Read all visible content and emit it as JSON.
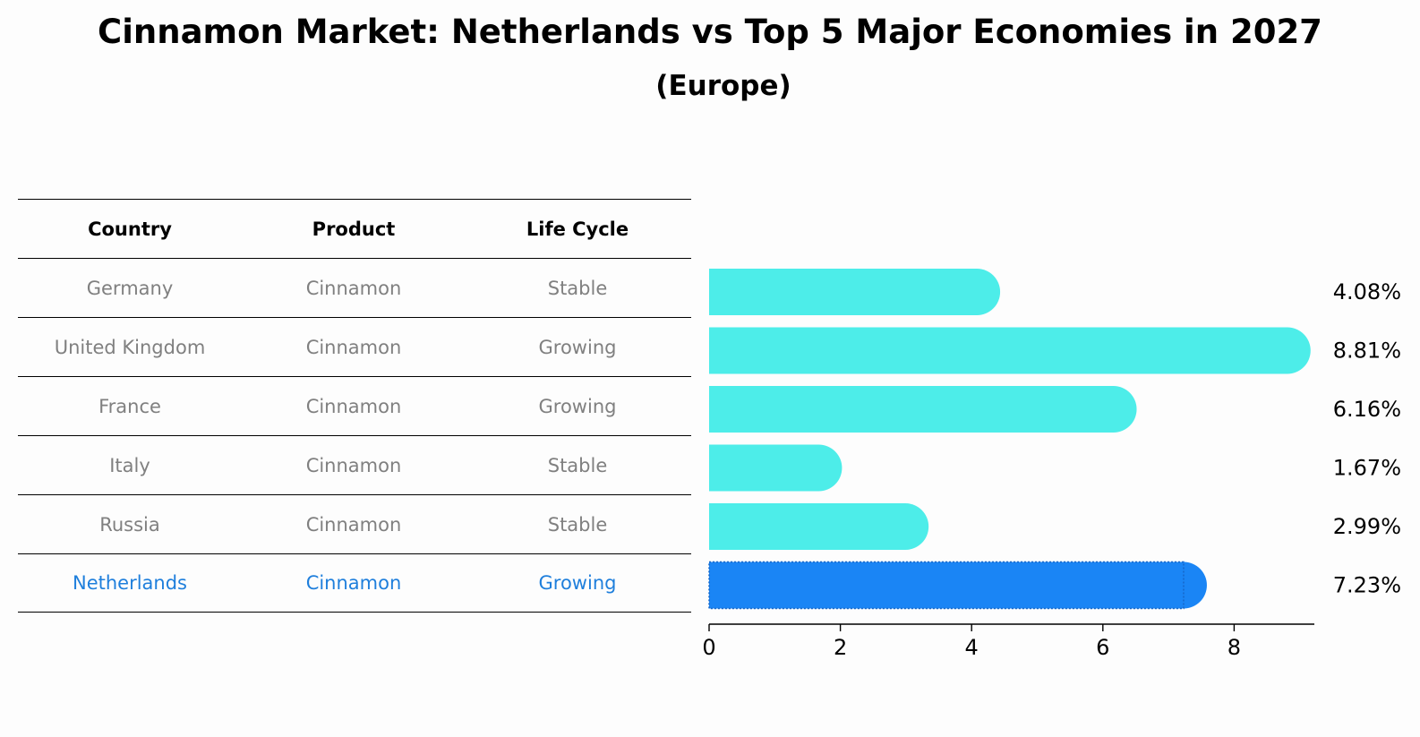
{
  "title": "Cinnamon Market: Netherlands vs Top 5 Major Economies in 2027",
  "subtitle": "(Europe)",
  "table": {
    "headers": [
      "Country",
      "Product",
      "Life Cycle"
    ],
    "rows": [
      [
        "Germany",
        "Cinnamon",
        "Stable"
      ],
      [
        "United Kingdom",
        "Cinnamon",
        "Growing"
      ],
      [
        "France",
        "Cinnamon",
        "Growing"
      ],
      [
        "Italy",
        "Cinnamon",
        "Stable"
      ],
      [
        "Russia",
        "Cinnamon",
        "Stable"
      ],
      [
        "Netherlands",
        "Cinnamon",
        "Growing"
      ]
    ]
  },
  "chart_data": {
    "type": "bar",
    "orientation": "horizontal",
    "categories": [
      "Germany",
      "United Kingdom",
      "France",
      "Italy",
      "Russia",
      "Netherlands"
    ],
    "values": [
      4.08,
      8.81,
      6.16,
      1.67,
      2.99,
      7.23
    ],
    "value_labels": [
      "4.08%",
      "8.81%",
      "6.16%",
      "1.67%",
      "2.99%",
      "7.23%"
    ],
    "highlight": "Netherlands",
    "xticks": [
      "0",
      "2",
      "4",
      "6",
      "8"
    ],
    "xlim": [
      0,
      9.25
    ],
    "colors": {
      "default": "#4dede9",
      "highlight": "#1a85f5"
    }
  }
}
